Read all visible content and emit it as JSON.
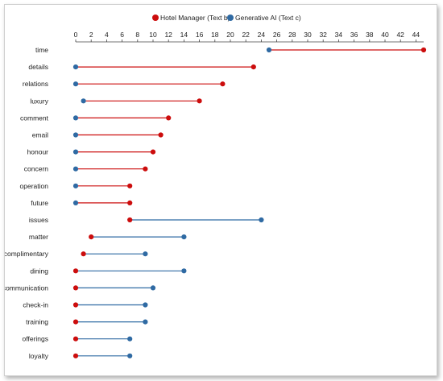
{
  "chart_data": {
    "type": "dumbbell",
    "title": "",
    "xlabel": "",
    "ylabel": "",
    "xlim": [
      0,
      45
    ],
    "x_ticks": [
      0,
      2,
      4,
      6,
      8,
      10,
      12,
      14,
      16,
      18,
      20,
      22,
      24,
      26,
      28,
      30,
      32,
      34,
      36,
      38,
      40,
      42,
      44
    ],
    "grid": false,
    "legend_position": "top-center",
    "series": [
      {
        "name": "Hotel Manager (Text b)",
        "color": "#cc0d0d"
      },
      {
        "name": "Generative AI (Text c)",
        "color": "#2f6aa3"
      }
    ],
    "categories": [
      "time",
      "details",
      "relations",
      "luxury",
      "comment",
      "email",
      "honour",
      "concern",
      "operation",
      "future",
      "issues",
      "matter",
      "complimentary",
      "dining",
      "communication",
      "check-in",
      "training",
      "offerings",
      "loyalty"
    ],
    "hotel_manager": [
      45,
      23,
      19,
      16,
      12,
      11,
      10,
      9,
      7,
      7,
      7,
      2,
      1,
      0,
      0,
      0,
      0,
      0,
      0
    ],
    "generative_ai": [
      25,
      0,
      0,
      1,
      0,
      0,
      0,
      0,
      0,
      0,
      24,
      14,
      9,
      14,
      10,
      9,
      9,
      7,
      7
    ]
  }
}
